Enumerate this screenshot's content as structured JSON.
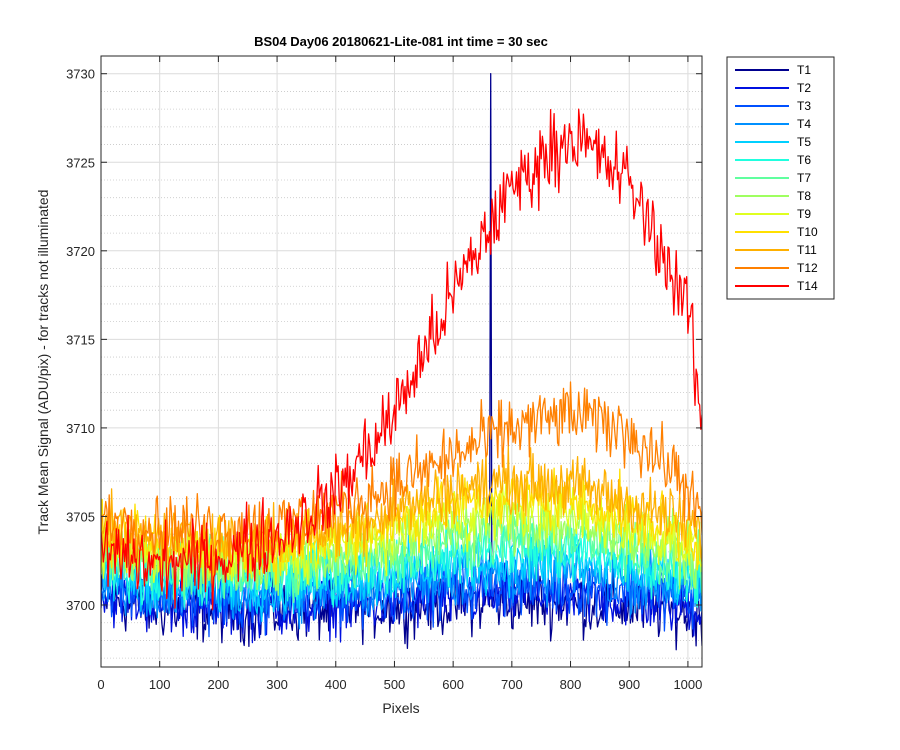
{
  "chart_data": {
    "type": "line",
    "title": "BS04 Day06 20180621-Lite-081 int time = 30 sec",
    "xlabel": "Pixels",
    "ylabel": "Track Mean Signal (ADU/pix) - for tracks not illuminated",
    "xlim": [
      0,
      1024
    ],
    "ylim": [
      3696.5,
      3731
    ],
    "xticks": [
      0,
      100,
      200,
      300,
      400,
      500,
      600,
      700,
      800,
      900,
      1000
    ],
    "yticks": [
      3700,
      3705,
      3710,
      3715,
      3720,
      3725,
      3730
    ],
    "grid": true,
    "minor_grid_y": true,
    "legend_position": "outside-right",
    "x_profile": [
      0,
      100,
      200,
      300,
      400,
      500,
      600,
      700,
      800,
      900,
      1000,
      1024
    ],
    "series": [
      {
        "name": "T1",
        "color": "#00008f",
        "noise": 1.2,
        "values": [
          3700.3,
          3699.8,
          3699.6,
          3699.6,
          3699.7,
          3699.9,
          3700.1,
          3700.2,
          3700.1,
          3699.9,
          3699.6,
          3699.4
        ]
      },
      {
        "name": "T2",
        "color": "#0010e0",
        "noise": 1.2,
        "values": [
          3700.6,
          3700.1,
          3699.9,
          3699.9,
          3700.0,
          3700.2,
          3700.4,
          3700.6,
          3700.5,
          3700.3,
          3700.0,
          3699.8
        ]
      },
      {
        "name": "T3",
        "color": "#0050ff",
        "noise": 1.2,
        "values": [
          3701.0,
          3700.5,
          3700.3,
          3700.3,
          3700.5,
          3700.7,
          3701.0,
          3701.2,
          3701.1,
          3700.9,
          3700.5,
          3700.3
        ]
      },
      {
        "name": "T4",
        "color": "#0090ff",
        "noise": 1.2,
        "values": [
          3701.4,
          3700.9,
          3700.7,
          3700.7,
          3700.9,
          3701.2,
          3701.6,
          3701.8,
          3701.7,
          3701.4,
          3701.0,
          3700.7
        ]
      },
      {
        "name": "T5",
        "color": "#00d0ff",
        "noise": 1.2,
        "values": [
          3701.8,
          3701.3,
          3701.1,
          3701.1,
          3701.4,
          3701.8,
          3702.3,
          3702.5,
          3702.4,
          3702.0,
          3701.5,
          3701.1
        ]
      },
      {
        "name": "T6",
        "color": "#20ffdf",
        "noise": 1.2,
        "values": [
          3702.2,
          3701.7,
          3701.5,
          3701.5,
          3701.9,
          3702.4,
          3703.0,
          3703.3,
          3703.1,
          3702.6,
          3702.0,
          3701.5
        ]
      },
      {
        "name": "T7",
        "color": "#60ff9f",
        "noise": 1.2,
        "values": [
          3702.6,
          3702.1,
          3701.9,
          3701.9,
          3702.3,
          3702.9,
          3703.6,
          3704.0,
          3703.8,
          3703.2,
          3702.5,
          3701.9
        ]
      },
      {
        "name": "T8",
        "color": "#9fff60",
        "noise": 1.2,
        "values": [
          3703.0,
          3702.5,
          3702.3,
          3702.3,
          3702.8,
          3703.5,
          3704.3,
          3704.7,
          3704.5,
          3703.8,
          3703.0,
          3702.3
        ]
      },
      {
        "name": "T9",
        "color": "#dfff20",
        "noise": 1.2,
        "values": [
          3703.4,
          3702.9,
          3702.7,
          3702.8,
          3703.3,
          3704.1,
          3705.0,
          3705.4,
          3705.2,
          3704.4,
          3703.5,
          3702.8
        ]
      },
      {
        "name": "T10",
        "color": "#ffe000",
        "noise": 1.2,
        "values": [
          3703.8,
          3703.3,
          3703.2,
          3703.3,
          3703.8,
          3704.7,
          3705.7,
          3706.2,
          3706.0,
          3705.1,
          3704.0,
          3703.3
        ]
      },
      {
        "name": "T11",
        "color": "#ffb000",
        "noise": 1.2,
        "values": [
          3704.2,
          3703.8,
          3703.6,
          3703.8,
          3704.4,
          3705.4,
          3706.5,
          3707.0,
          3706.8,
          3705.8,
          3704.6,
          3703.8
        ]
      },
      {
        "name": "T12",
        "color": "#ff8000",
        "noise": 1.3,
        "values": [
          3704.8,
          3704.4,
          3704.3,
          3704.5,
          3705.4,
          3706.8,
          3708.4,
          3710.0,
          3710.8,
          3709.8,
          3706.8,
          3704.3
        ]
      },
      {
        "name": "T14",
        "color": "#ff0000",
        "noise": 1.5,
        "values": [
          3703.0,
          3702.2,
          3702.6,
          3703.9,
          3706.3,
          3710.8,
          3717.5,
          3723.6,
          3726.6,
          3723.9,
          3716.8,
          3710.0
        ]
      }
    ],
    "annotations": [
      {
        "series": "T1",
        "x": 664,
        "y": 3730.0,
        "note": "single-pixel spike"
      }
    ]
  }
}
